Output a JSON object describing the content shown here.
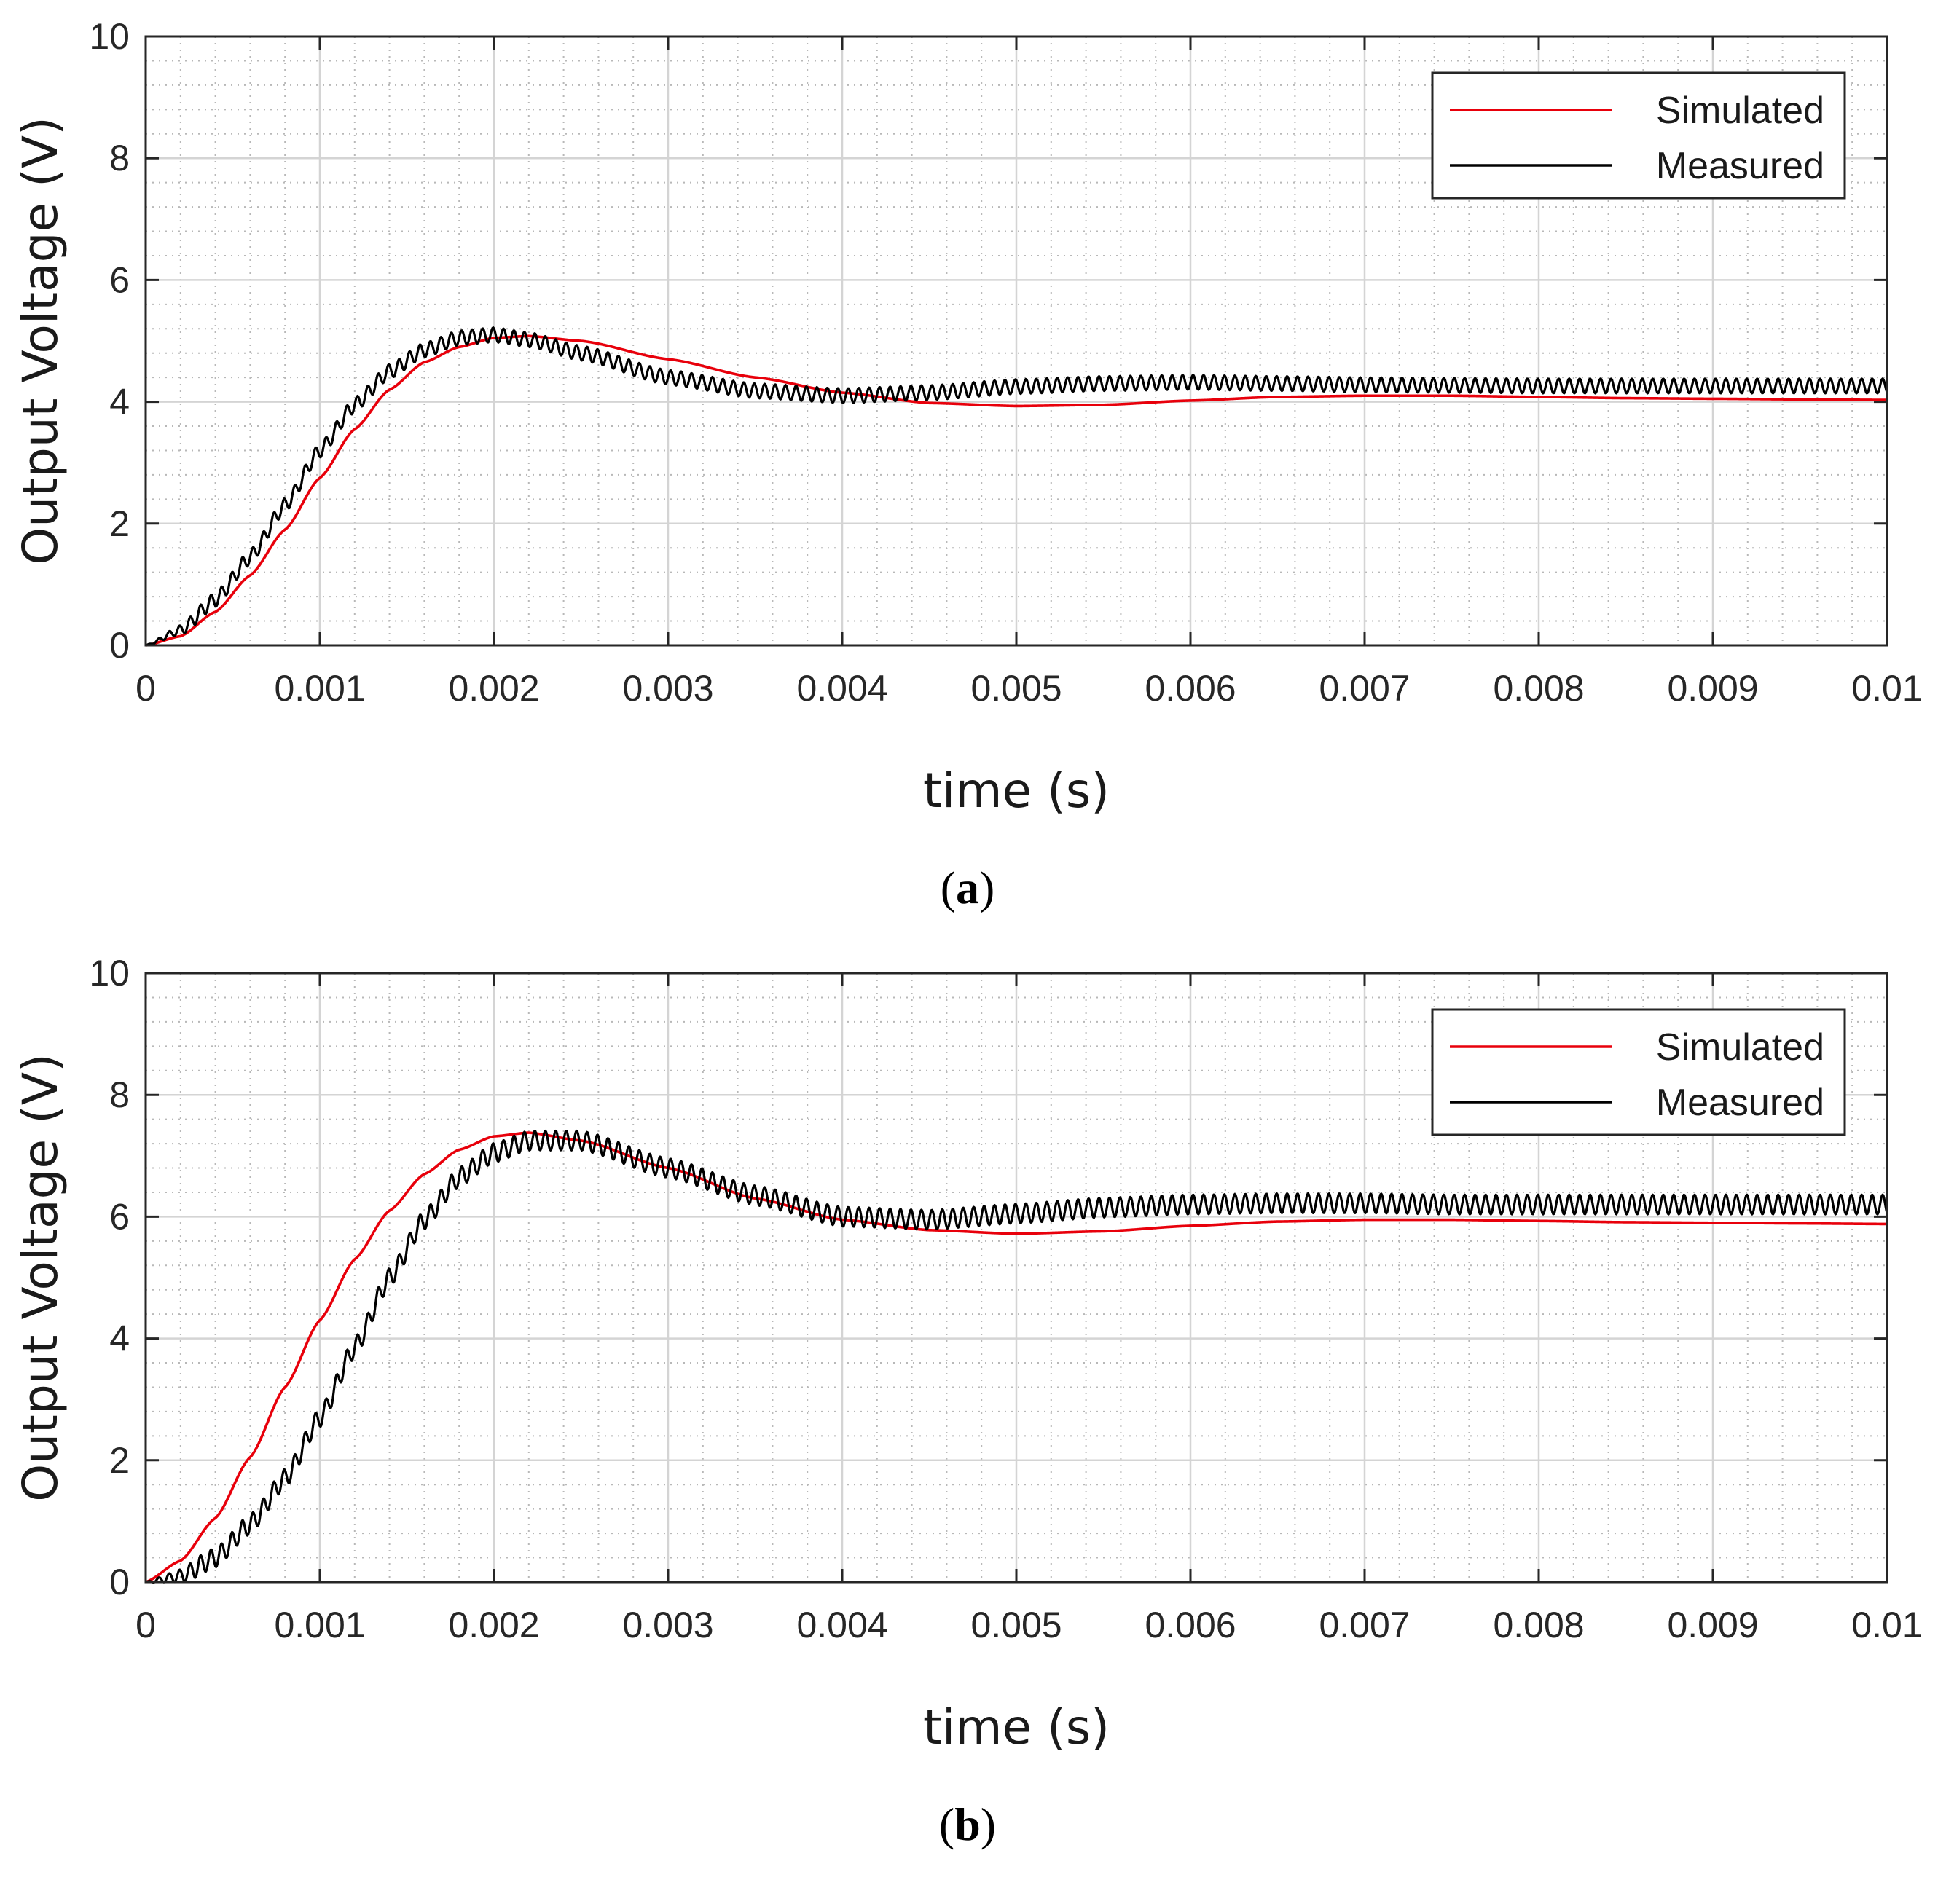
{
  "chart_data": [
    {
      "type": "line",
      "panel": "a",
      "caption_letter": "a",
      "xlabel": "time (s)",
      "ylabel": "Output Voltage (V)",
      "xlim": [
        0,
        0.01
      ],
      "ylim": [
        0,
        10
      ],
      "grid": true,
      "minor_grid": true,
      "legend_position": "top-right",
      "xticks": [
        0,
        0.001,
        0.002,
        0.003,
        0.004,
        0.005,
        0.006,
        0.007,
        0.008,
        0.009,
        0.01
      ],
      "xtick_labels": [
        "0",
        "0.001",
        "0.002",
        "0.003",
        "0.004",
        "0.005",
        "0.006",
        "0.007",
        "0.008",
        "0.009",
        "0.01"
      ],
      "yticks": [
        0,
        2,
        4,
        6,
        8,
        10
      ],
      "ytick_labels": [
        "0",
        "2",
        "4",
        "6",
        "8",
        "10"
      ],
      "series": [
        {
          "name": "Simulated",
          "color": "#e8000b",
          "ripple": 0,
          "ripple_period": 6e-05,
          "points": [
            [
              0,
              0
            ],
            [
              0.0002,
              0.15
            ],
            [
              0.0004,
              0.55
            ],
            [
              0.0006,
              1.15
            ],
            [
              0.0008,
              1.9
            ],
            [
              0.001,
              2.75
            ],
            [
              0.0012,
              3.55
            ],
            [
              0.0014,
              4.2
            ],
            [
              0.0016,
              4.65
            ],
            [
              0.0018,
              4.9
            ],
            [
              0.002,
              5.05
            ],
            [
              0.0022,
              5.08
            ],
            [
              0.0025,
              5.0
            ],
            [
              0.003,
              4.7
            ],
            [
              0.0035,
              4.4
            ],
            [
              0.004,
              4.15
            ],
            [
              0.0045,
              3.98
            ],
            [
              0.005,
              3.93
            ],
            [
              0.0055,
              3.95
            ],
            [
              0.006,
              4.02
            ],
            [
              0.0065,
              4.08
            ],
            [
              0.007,
              4.1
            ],
            [
              0.0075,
              4.1
            ],
            [
              0.008,
              4.08
            ],
            [
              0.0085,
              4.06
            ],
            [
              0.009,
              4.05
            ],
            [
              0.0095,
              4.04
            ],
            [
              0.01,
              4.03
            ]
          ]
        },
        {
          "name": "Measured",
          "color": "#000000",
          "ripple": 0.12,
          "ripple_period": 6e-05,
          "points": [
            [
              0,
              0
            ],
            [
              0.0002,
              0.25
            ],
            [
              0.0004,
              0.75
            ],
            [
              0.0006,
              1.45
            ],
            [
              0.0008,
              2.3
            ],
            [
              0.001,
              3.2
            ],
            [
              0.0012,
              3.95
            ],
            [
              0.0014,
              4.5
            ],
            [
              0.0016,
              4.85
            ],
            [
              0.0018,
              5.05
            ],
            [
              0.002,
              5.1
            ],
            [
              0.0022,
              5.02
            ],
            [
              0.0025,
              4.8
            ],
            [
              0.003,
              4.4
            ],
            [
              0.0035,
              4.18
            ],
            [
              0.004,
              4.1
            ],
            [
              0.0045,
              4.15
            ],
            [
              0.005,
              4.25
            ],
            [
              0.0055,
              4.3
            ],
            [
              0.006,
              4.32
            ],
            [
              0.0065,
              4.3
            ],
            [
              0.007,
              4.28
            ],
            [
              0.0075,
              4.27
            ],
            [
              0.008,
              4.26
            ],
            [
              0.0085,
              4.26
            ],
            [
              0.009,
              4.26
            ],
            [
              0.0095,
              4.26
            ],
            [
              0.01,
              4.26
            ]
          ]
        }
      ]
    },
    {
      "type": "line",
      "panel": "b",
      "caption_letter": "b",
      "xlabel": "time (s)",
      "ylabel": "Output Voltage (V)",
      "xlim": [
        0,
        0.01
      ],
      "ylim": [
        0,
        10
      ],
      "grid": true,
      "minor_grid": true,
      "legend_position": "top-right",
      "xticks": [
        0,
        0.001,
        0.002,
        0.003,
        0.004,
        0.005,
        0.006,
        0.007,
        0.008,
        0.009,
        0.01
      ],
      "xtick_labels": [
        "0",
        "0.001",
        "0.002",
        "0.003",
        "0.004",
        "0.005",
        "0.006",
        "0.007",
        "0.008",
        "0.009",
        "0.01"
      ],
      "yticks": [
        0,
        2,
        4,
        6,
        8,
        10
      ],
      "ytick_labels": [
        "0",
        "2",
        "4",
        "6",
        "8",
        "10"
      ],
      "series": [
        {
          "name": "Simulated",
          "color": "#e8000b",
          "ripple": 0,
          "ripple_period": 6e-05,
          "points": [
            [
              0,
              0
            ],
            [
              0.0002,
              0.35
            ],
            [
              0.0004,
              1.05
            ],
            [
              0.0006,
              2.05
            ],
            [
              0.0008,
              3.2
            ],
            [
              0.001,
              4.3
            ],
            [
              0.0012,
              5.3
            ],
            [
              0.0014,
              6.1
            ],
            [
              0.0016,
              6.7
            ],
            [
              0.0018,
              7.1
            ],
            [
              0.002,
              7.32
            ],
            [
              0.0022,
              7.38
            ],
            [
              0.0025,
              7.25
            ],
            [
              0.003,
              6.8
            ],
            [
              0.0035,
              6.3
            ],
            [
              0.004,
              5.95
            ],
            [
              0.0045,
              5.78
            ],
            [
              0.005,
              5.72
            ],
            [
              0.0055,
              5.76
            ],
            [
              0.006,
              5.85
            ],
            [
              0.0065,
              5.92
            ],
            [
              0.007,
              5.95
            ],
            [
              0.0075,
              5.95
            ],
            [
              0.008,
              5.93
            ],
            [
              0.0085,
              5.91
            ],
            [
              0.009,
              5.9
            ],
            [
              0.0095,
              5.89
            ],
            [
              0.01,
              5.88
            ]
          ]
        },
        {
          "name": "Measured",
          "color": "#000000",
          "ripple": 0.16,
          "ripple_period": 6e-05,
          "points": [
            [
              0,
              0
            ],
            [
              0.0002,
              0.1
            ],
            [
              0.0004,
              0.4
            ],
            [
              0.0006,
              0.95
            ],
            [
              0.0008,
              1.7
            ],
            [
              0.001,
              2.7
            ],
            [
              0.0012,
              3.85
            ],
            [
              0.0014,
              5.0
            ],
            [
              0.0016,
              5.95
            ],
            [
              0.0018,
              6.65
            ],
            [
              0.002,
              7.05
            ],
            [
              0.0022,
              7.25
            ],
            [
              0.0025,
              7.25
            ],
            [
              0.003,
              6.8
            ],
            [
              0.0035,
              6.35
            ],
            [
              0.004,
              6.0
            ],
            [
              0.0045,
              5.95
            ],
            [
              0.005,
              6.05
            ],
            [
              0.0055,
              6.15
            ],
            [
              0.006,
              6.2
            ],
            [
              0.0065,
              6.22
            ],
            [
              0.007,
              6.22
            ],
            [
              0.0075,
              6.2
            ],
            [
              0.008,
              6.2
            ],
            [
              0.0085,
              6.2
            ],
            [
              0.009,
              6.2
            ],
            [
              0.0095,
              6.2
            ],
            [
              0.01,
              6.2
            ]
          ]
        }
      ]
    }
  ]
}
